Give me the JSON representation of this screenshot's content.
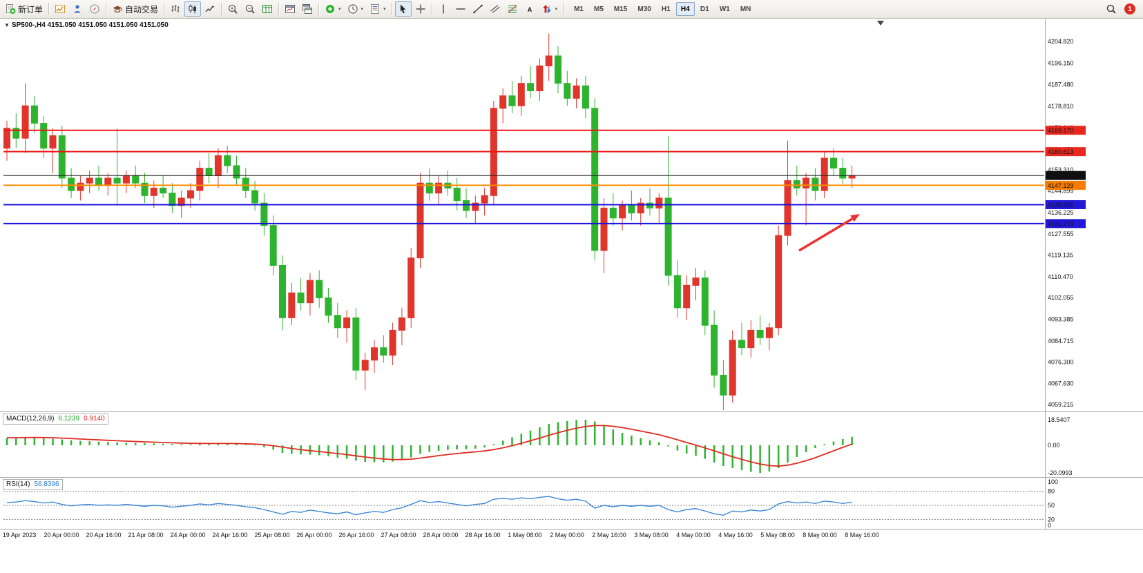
{
  "toolbar": {
    "new_order_label": "新订单",
    "autotrading_label": "自动交易",
    "timeframes": [
      "M1",
      "M5",
      "M15",
      "M30",
      "H1",
      "H4",
      "D1",
      "W1",
      "MN"
    ],
    "active_timeframe": "H4",
    "notification_count": "1",
    "icons": [
      "new-order-icon",
      "charts-icon",
      "market-watch-icon",
      "navigator-icon",
      "autotrading-icon",
      "bar-chart-icon",
      "candlestick-chart-icon",
      "line-chart-icon",
      "zoom-in-icon",
      "zoom-out-icon",
      "tile-windows-icon",
      "new-chart-icon",
      "chart-profiles-icon",
      "indicators-icon",
      "periods-icon",
      "templates-icon",
      "cursor-icon",
      "crosshair-icon",
      "vertical-line-icon",
      "horizontal-line-icon",
      "trendline-icon",
      "channel-icon",
      "fibonacci-icon",
      "text-icon",
      "arrows-icon",
      "search-icon",
      "notification-badge"
    ]
  },
  "chart_data": {
    "type": "candlestick",
    "symbol_label": "SP500-,H4 4151.050 4151.050 4151.050 4151.050",
    "bull_color": "#e0352b",
    "bear_color": "#2db32d",
    "price_axis_labels": [
      "4204.820",
      "4196.150",
      "4187.480",
      "4178.810",
      "4170.140",
      "4161.470",
      "4153.310",
      "4144.899",
      "4136.225",
      "4127.555",
      "4119.135",
      "4110.470",
      "4102.055",
      "4093.385",
      "4084.715",
      "4076.300",
      "4067.630",
      "4059.215"
    ],
    "boxed_labels": [
      {
        "value": "4169.170",
        "price": 4169.17,
        "color": "#e8281e"
      },
      {
        "value": "4160.613",
        "price": 4160.613,
        "color": "#e8281e"
      },
      {
        "value": "4151.050",
        "price": 4151.05,
        "color": "#101010"
      },
      {
        "value": "4147.129",
        "price": 4147.129,
        "color": "#f57c00"
      },
      {
        "value": "4139.351",
        "price": 4139.351,
        "color": "#2218d8"
      },
      {
        "value": "4131.779",
        "price": 4131.779,
        "color": "#2218d8"
      }
    ],
    "hlines": [
      {
        "name": "resistance-line-4169",
        "price": 4169.17,
        "color": "#f01414",
        "width": 2
      },
      {
        "name": "resistance-line-4160",
        "price": 4160.613,
        "color": "#f01414",
        "width": 2
      },
      {
        "name": "current-price-line",
        "price": 4151.05,
        "color": "#202020",
        "width": 1
      },
      {
        "name": "support-line-4147",
        "price": 4147.129,
        "color": "#ff8c00",
        "width": 2
      },
      {
        "name": "support-line-4139",
        "price": 4139.351,
        "color": "#1a10e0",
        "width": 2
      },
      {
        "name": "support-line-4131",
        "price": 4131.779,
        "color": "#1a10e0",
        "width": 2
      }
    ],
    "time_axis": [
      "19 Apr 2023",
      "20 Apr 00:00",
      "20 Apr 16:00",
      "21 Apr 08:00",
      "24 Apr 00:00",
      "24 Apr 16:00",
      "25 Apr 08:00",
      "26 Apr 00:00",
      "26 Apr 16:00",
      "27 Apr 08:00",
      "28 Apr 00:00",
      "28 Apr 16:00",
      "1 May 08:00",
      "2 May 00:00",
      "2 May 16:00",
      "3 May 08:00",
      "4 May 00:00",
      "4 May 16:00",
      "5 May 08:00",
      "8 May 00:00",
      "8 May 16:00"
    ],
    "candles": [
      [
        4162,
        4173,
        4157,
        4170
      ],
      [
        4170,
        4176,
        4162,
        4166
      ],
      [
        4166,
        4188,
        4160,
        4179
      ],
      [
        4179,
        4183,
        4168,
        4172
      ],
      [
        4172,
        4175,
        4158,
        4162
      ],
      [
        4162,
        4170,
        4152,
        4167
      ],
      [
        4167,
        4171,
        4146,
        4150
      ],
      [
        4150,
        4154,
        4142,
        4145
      ],
      [
        4145,
        4151,
        4141,
        4148
      ],
      [
        4148,
        4153,
        4144,
        4150
      ],
      [
        4150,
        4155,
        4145,
        4147
      ],
      [
        4147,
        4152,
        4143,
        4150
      ],
      [
        4150,
        4170,
        4139,
        4148
      ],
      [
        4148,
        4153,
        4144,
        4151
      ],
      [
        4151,
        4155,
        4146,
        4148
      ],
      [
        4148,
        4152,
        4140,
        4143
      ],
      [
        4143,
        4149,
        4138,
        4146
      ],
      [
        4146,
        4151,
        4142,
        4144
      ],
      [
        4144,
        4148,
        4136,
        4139
      ],
      [
        4139,
        4145,
        4134,
        4142
      ],
      [
        4142,
        4148,
        4138,
        4145
      ],
      [
        4145,
        4157,
        4141,
        4154
      ],
      [
        4154,
        4160,
        4148,
        4151
      ],
      [
        4151,
        4162,
        4146,
        4159
      ],
      [
        4159,
        4163,
        4152,
        4155
      ],
      [
        4155,
        4159,
        4147,
        4150
      ],
      [
        4150,
        4154,
        4142,
        4145
      ],
      [
        4145,
        4149,
        4137,
        4140
      ],
      [
        4140,
        4144,
        4127,
        4131
      ],
      [
        4131,
        4135,
        4111,
        4115
      ],
      [
        4115,
        4119,
        4089,
        4094
      ],
      [
        4094,
        4108,
        4091,
        4104
      ],
      [
        4104,
        4110,
        4097,
        4100
      ],
      [
        4100,
        4112,
        4095,
        4109
      ],
      [
        4109,
        4113,
        4098,
        4102
      ],
      [
        4102,
        4106,
        4092,
        4095
      ],
      [
        4095,
        4100,
        4086,
        4090
      ],
      [
        4090,
        4097,
        4084,
        4094
      ],
      [
        4094,
        4098,
        4069,
        4073
      ],
      [
        4073,
        4080,
        4065,
        4077
      ],
      [
        4077,
        4085,
        4072,
        4082
      ],
      [
        4082,
        4087,
        4076,
        4079
      ],
      [
        4079,
        4092,
        4075,
        4089
      ],
      [
        4089,
        4098,
        4083,
        4094
      ],
      [
        4094,
        4122,
        4090,
        4118
      ],
      [
        4118,
        4152,
        4114,
        4148
      ],
      [
        4148,
        4154,
        4141,
        4144
      ],
      [
        4144,
        4151,
        4139,
        4148
      ],
      [
        4148,
        4153,
        4143,
        4146
      ],
      [
        4146,
        4150,
        4137,
        4141
      ],
      [
        4141,
        4146,
        4134,
        4137
      ],
      [
        4137,
        4143,
        4132,
        4140
      ],
      [
        4140,
        4146,
        4135,
        4143
      ],
      [
        4143,
        4181,
        4139,
        4178
      ],
      [
        4178,
        4186,
        4172,
        4183
      ],
      [
        4183,
        4189,
        4176,
        4179
      ],
      [
        4179,
        4191,
        4175,
        4188
      ],
      [
        4188,
        4195,
        4182,
        4185
      ],
      [
        4185,
        4198,
        4181,
        4195
      ],
      [
        4195,
        4208,
        4189,
        4199
      ],
      [
        4199,
        4203,
        4184,
        4188
      ],
      [
        4188,
        4193,
        4179,
        4182
      ],
      [
        4182,
        4190,
        4178,
        4187
      ],
      [
        4187,
        4191,
        4174,
        4178
      ],
      [
        4178,
        4182,
        4117,
        4121
      ],
      [
        4121,
        4142,
        4112,
        4138
      ],
      [
        4138,
        4144,
        4131,
        4134
      ],
      [
        4134,
        4141,
        4129,
        4139
      ],
      [
        4139,
        4145,
        4133,
        4136
      ],
      [
        4136,
        4142,
        4131,
        4140
      ],
      [
        4140,
        4146,
        4135,
        4138
      ],
      [
        4138,
        4144,
        4132,
        4142
      ],
      [
        4142,
        4167,
        4107,
        4111
      ],
      [
        4111,
        4117,
        4094,
        4098
      ],
      [
        4098,
        4111,
        4093,
        4107
      ],
      [
        4107,
        4114,
        4101,
        4110
      ],
      [
        4110,
        4113,
        4087,
        4091
      ],
      [
        4091,
        4097,
        4066,
        4071
      ],
      [
        4071,
        4077,
        4057,
        4063
      ],
      [
        4063,
        4089,
        4060,
        4085
      ],
      [
        4085,
        4092,
        4079,
        4082
      ],
      [
        4082,
        4093,
        4078,
        4089
      ],
      [
        4089,
        4095,
        4083,
        4086
      ],
      [
        4086,
        4092,
        4081,
        4090
      ],
      [
        4090,
        4131,
        4087,
        4127
      ],
      [
        4127,
        4165,
        4123,
        4149
      ],
      [
        4149,
        4155,
        4143,
        4146
      ],
      [
        4146,
        4152,
        4131,
        4150
      ],
      [
        4150,
        4154,
        4141,
        4145
      ],
      [
        4145,
        4161,
        4142,
        4158
      ],
      [
        4158,
        4162,
        4151,
        4154
      ],
      [
        4154,
        4158,
        4147,
        4150
      ],
      [
        4150,
        4155,
        4146,
        4151.05
      ]
    ],
    "macd": {
      "label": "MACD(12,26,9)",
      "main_value": "6.1239",
      "signal_value": "0.9140",
      "histogram_color": "#2db32d",
      "signal_color": "#e02a20",
      "axis": [
        "18.5407",
        "0.00",
        "-20.0993"
      ],
      "histogram": [
        5.2,
        5.6,
        6,
        5.8,
        5.3,
        4.8,
        4.2,
        3.6,
        3.2,
        2.9,
        2.6,
        2.4,
        2.1,
        1.9,
        1.7,
        1.5,
        1.3,
        1.1,
        0.9,
        0.8,
        0.8,
        1,
        1.2,
        1.4,
        1.3,
        1,
        0.5,
        -0.2,
        -1.5,
        -3.2,
        -5.5,
        -6.2,
        -6.6,
        -6.8,
        -7.2,
        -8,
        -9,
        -9.8,
        -11.2,
        -12,
        -12.2,
        -12.4,
        -11.8,
        -10.6,
        -8.8,
        -6.2,
        -4.8,
        -4,
        -3.4,
        -3,
        -2.8,
        -2.4,
        -1.6,
        0.8,
        3.4,
        5.8,
        8.4,
        10.6,
        13,
        15.4,
        16.8,
        17.6,
        18.3,
        18.54,
        17.2,
        14.4,
        11.5,
        9,
        7,
        5.2,
        3.6,
        2.2,
        -0.8,
        -3.8,
        -6,
        -7.6,
        -9.8,
        -12.5,
        -15,
        -16.5,
        -18,
        -19.2,
        -20.1,
        -19,
        -16.5,
        -12.5,
        -8.5,
        -5,
        -2,
        0.8,
        2.8,
        4.6,
        6.12
      ],
      "signal_line": [
        5.5,
        5.5,
        5.6,
        5.65,
        5.6,
        5.45,
        5.2,
        4.9,
        4.55,
        4.2,
        3.9,
        3.6,
        3.3,
        3,
        2.75,
        2.5,
        2.25,
        2,
        1.8,
        1.6,
        1.45,
        1.35,
        1.3,
        1.3,
        1.3,
        1.25,
        1.1,
        0.85,
        0.4,
        -0.3,
        -1.3,
        -2.3,
        -3.2,
        -3.9,
        -4.55,
        -5.25,
        -6,
        -6.75,
        -7.65,
        -8.5,
        -9.25,
        -9.9,
        -10.3,
        -10.35,
        -10.05,
        -9.3,
        -8.4,
        -7.5,
        -6.7,
        -6,
        -5.35,
        -4.75,
        -4.1,
        -3.1,
        -1.8,
        -0.3,
        1.45,
        3.3,
        5.2,
        7.25,
        9.15,
        10.85,
        12.35,
        13.6,
        14.3,
        14.3,
        13.75,
        12.8,
        11.6,
        10.3,
        9,
        7.6,
        5.9,
        4,
        2,
        0.1,
        -1.9,
        -4,
        -6.2,
        -8.3,
        -10.2,
        -12,
        -13.6,
        -14.7,
        -15.1,
        -14.4,
        -13,
        -11.2,
        -9,
        -6.5,
        -4,
        -1.5,
        0.91
      ]
    },
    "rsi": {
      "label": "RSI(14)",
      "value": "56.8396",
      "line_color": "#3a87d8",
      "levels": [
        80,
        50,
        20
      ],
      "axis": [
        "100",
        "80",
        "50",
        "20",
        "0"
      ],
      "series": [
        56,
        57,
        60,
        58,
        55,
        57,
        52,
        49,
        51,
        52,
        50,
        51,
        50,
        52,
        50,
        48,
        50,
        49,
        46,
        48,
        50,
        53,
        51,
        54,
        52,
        50,
        47,
        45,
        41,
        36,
        31,
        37,
        35,
        40,
        37,
        34,
        32,
        36,
        30,
        34,
        37,
        35,
        41,
        45,
        52,
        60,
        56,
        58,
        55,
        52,
        49,
        52,
        54,
        63,
        65,
        63,
        66,
        64,
        67,
        69,
        64,
        61,
        63,
        59,
        44,
        50,
        47,
        50,
        48,
        50,
        48,
        50,
        41,
        36,
        41,
        43,
        38,
        32,
        29,
        38,
        36,
        40,
        38,
        41,
        53,
        58,
        55,
        57,
        54,
        59,
        57,
        54,
        56.84
      ]
    },
    "arrow": {
      "color": "#f03030"
    }
  }
}
